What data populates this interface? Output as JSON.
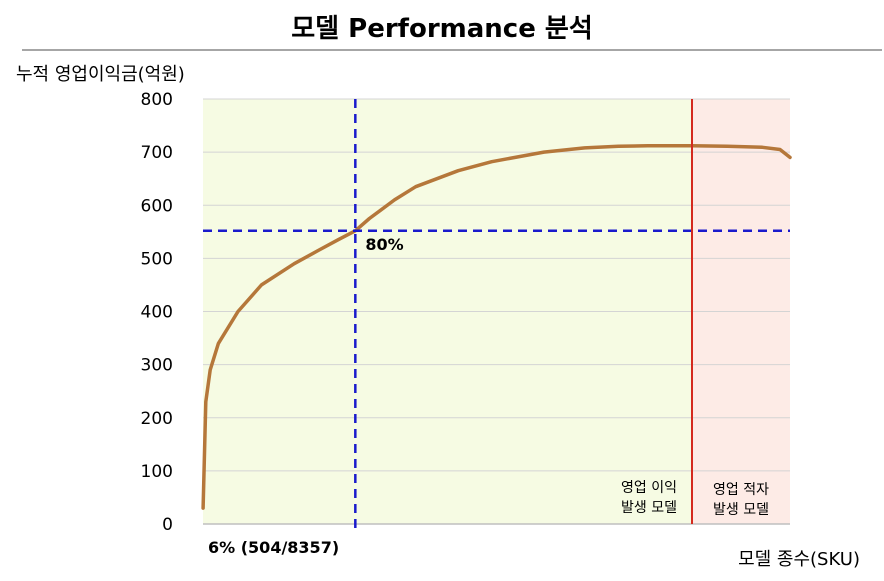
{
  "chart_data": {
    "type": "line",
    "title": "모델 Performance 분석",
    "ylabel": "누적 영업이익금(억원)",
    "xlabel": "모델 종수(SKU)",
    "ylim": [
      0,
      800
    ],
    "yticks": [
      0,
      100,
      200,
      300,
      400,
      500,
      600,
      700,
      800
    ],
    "grid": true,
    "series": [
      {
        "color": "#b5773a",
        "x": [
          1,
          5,
          10,
          20,
          50,
          100,
          200,
          300,
          400,
          504,
          600,
          800,
          1000,
          1500,
          2000,
          3000,
          4000,
          5000,
          6000,
          7000,
          7800,
          8000,
          8200,
          8300,
          8357
        ],
        "y": [
          30,
          230,
          290,
          340,
          400,
          450,
          490,
          515,
          535,
          552,
          575,
          610,
          635,
          665,
          682,
          700,
          708,
          711,
          712,
          712,
          712,
          711,
          709,
          705,
          690
        ]
      }
    ],
    "x_max": 8357,
    "profit_boundary": 7800,
    "cutoff": {
      "y_value": 552,
      "y_label": "80%",
      "x_value": 504,
      "x_label": "6% (504/8357)"
    },
    "regions": [
      {
        "line1": "영업 이익",
        "line2": "발생 모델",
        "color": "#f6fbe3"
      },
      {
        "line1": "영업 적자",
        "line2": "발생 모델",
        "color": "#fdebe6"
      }
    ],
    "colors": {
      "grid": "#d4d4d4",
      "cutoff": "#1a1acc",
      "boundary": "#d42a1f",
      "axis": "#bfbfbf"
    }
  }
}
